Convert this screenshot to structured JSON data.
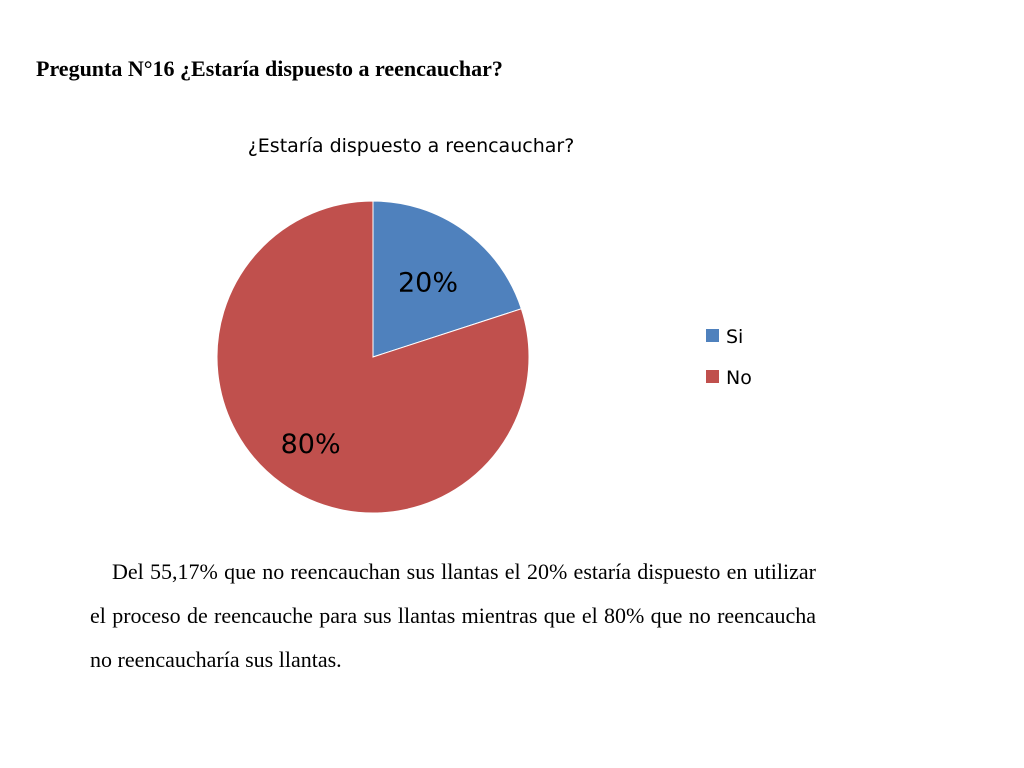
{
  "page": {
    "heading": "Pregunta N°16 ¿Estaría dispuesto a reencauchar?",
    "paragraph": "Del 55,17% que no reencauchan sus llantas el 20% estaría dispuesto en utilizar el proceso de reencauche para sus llantas mientras que el 80% que no reencaucha no reencaucharía sus llantas."
  },
  "chart_data": {
    "type": "pie",
    "title": "¿Estaría dispuesto a reencauchar?",
    "categories": [
      "Si",
      "No"
    ],
    "values": [
      20,
      80
    ],
    "labels": [
      "20%",
      "80%"
    ],
    "colors": [
      "#4F81BD",
      "#C0504D"
    ],
    "legend_position": "right"
  }
}
